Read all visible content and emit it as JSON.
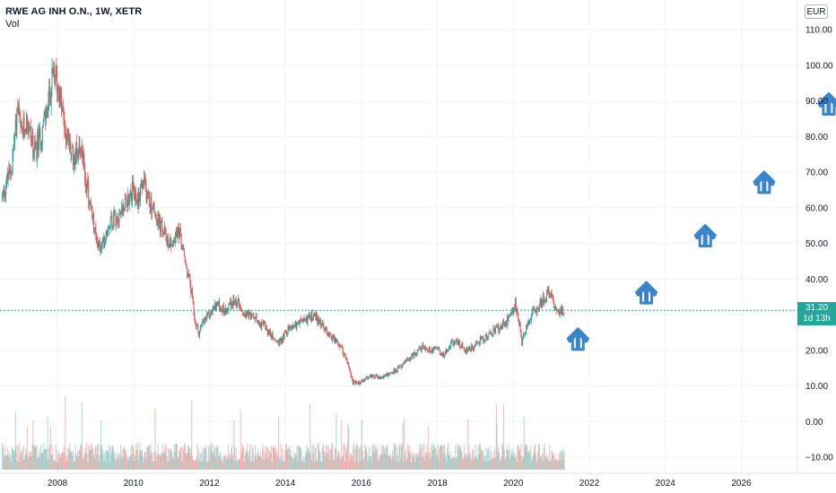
{
  "header": {
    "symbol": "RWE AG INH O.N., 1W, XETR",
    "indicator": "Vol",
    "currency": "EUR"
  },
  "price_tag": {
    "price": "31.20",
    "countdown": "1d 13h"
  },
  "colors": {
    "up": "#26a69a",
    "down": "#ef5350",
    "arrow": "#3a84c9",
    "grid": "#f0f3fa",
    "axis_text": "#131722"
  },
  "chart_data": {
    "type": "candlestick",
    "title": "RWE AG INH O.N., 1W, XETR",
    "xlim": [
      2006.55,
      2027.6
    ],
    "ylim": [
      -14,
      116
    ],
    "y_ticks": [
      "110.00",
      "100.00",
      "90.00",
      "80.00",
      "70.00",
      "60.00",
      "50.00",
      "40.00",
      "30.00",
      "20.00",
      "10.00",
      "0.00",
      "−10.00"
    ],
    "x_ticks": [
      "2008",
      "2010",
      "2012",
      "2014",
      "2016",
      "2018",
      "2020",
      "2022",
      "2024",
      "2026"
    ],
    "last_price": 31.2,
    "price_path": [
      [
        2006.55,
        63
      ],
      [
        2006.8,
        72
      ],
      [
        2006.95,
        88
      ],
      [
        2007.05,
        80
      ],
      [
        2007.2,
        85
      ],
      [
        2007.4,
        75
      ],
      [
        2007.6,
        82
      ],
      [
        2007.75,
        88
      ],
      [
        2007.85,
        95
      ],
      [
        2007.95,
        97
      ],
      [
        2008.05,
        92
      ],
      [
        2008.2,
        82
      ],
      [
        2008.4,
        74
      ],
      [
        2008.6,
        78
      ],
      [
        2008.75,
        68
      ],
      [
        2008.9,
        58
      ],
      [
        2009.0,
        52
      ],
      [
        2009.15,
        48
      ],
      [
        2009.35,
        56
      ],
      [
        2009.55,
        58
      ],
      [
        2009.75,
        60
      ],
      [
        2009.95,
        65
      ],
      [
        2010.1,
        62
      ],
      [
        2010.25,
        67
      ],
      [
        2010.35,
        64
      ],
      [
        2010.5,
        60
      ],
      [
        2010.7,
        55
      ],
      [
        2010.9,
        51
      ],
      [
        2011.05,
        50
      ],
      [
        2011.2,
        54
      ],
      [
        2011.35,
        45
      ],
      [
        2011.5,
        38
      ],
      [
        2011.62,
        28
      ],
      [
        2011.72,
        25
      ],
      [
        2011.85,
        28
      ],
      [
        2012.0,
        30
      ],
      [
        2012.2,
        33
      ],
      [
        2012.4,
        31
      ],
      [
        2012.6,
        34
      ],
      [
        2012.8,
        33
      ],
      [
        2013.0,
        30
      ],
      [
        2013.3,
        28
      ],
      [
        2013.5,
        26
      ],
      [
        2013.7,
        23
      ],
      [
        2013.85,
        22
      ],
      [
        2014.0,
        25
      ],
      [
        2014.2,
        27
      ],
      [
        2014.4,
        28
      ],
      [
        2014.6,
        29
      ],
      [
        2014.75,
        30
      ],
      [
        2014.9,
        28
      ],
      [
        2015.1,
        25
      ],
      [
        2015.3,
        23
      ],
      [
        2015.5,
        20
      ],
      [
        2015.65,
        16
      ],
      [
        2015.78,
        11
      ],
      [
        2015.9,
        10.5
      ],
      [
        2016.1,
        12
      ],
      [
        2016.3,
        13
      ],
      [
        2016.5,
        12
      ],
      [
        2016.75,
        13.5
      ],
      [
        2017.0,
        15
      ],
      [
        2017.2,
        17
      ],
      [
        2017.4,
        19
      ],
      [
        2017.6,
        21
      ],
      [
        2017.8,
        20
      ],
      [
        2018.0,
        21
      ],
      [
        2018.15,
        18.5
      ],
      [
        2018.35,
        22
      ],
      [
        2018.55,
        22
      ],
      [
        2018.75,
        20
      ],
      [
        2018.95,
        21
      ],
      [
        2019.15,
        23
      ],
      [
        2019.35,
        24
      ],
      [
        2019.55,
        26
      ],
      [
        2019.75,
        27
      ],
      [
        2019.9,
        29
      ],
      [
        2020.05,
        33
      ],
      [
        2020.15,
        28
      ],
      [
        2020.22,
        22
      ],
      [
        2020.35,
        27
      ],
      [
        2020.5,
        30
      ],
      [
        2020.7,
        33
      ],
      [
        2020.85,
        35
      ],
      [
        2020.95,
        37
      ],
      [
        2021.05,
        33
      ],
      [
        2021.2,
        31
      ],
      [
        2021.35,
        31.2
      ]
    ],
    "volume_scale_max": 6,
    "forecast_arrows": [
      {
        "x": 2021.7,
        "y": 23
      },
      {
        "x": 2023.5,
        "y": 36
      },
      {
        "x": 2025.05,
        "y": 52
      },
      {
        "x": 2026.6,
        "y": 67
      },
      {
        "x": 2028.3,
        "y": 89
      }
    ],
    "grid": true
  }
}
